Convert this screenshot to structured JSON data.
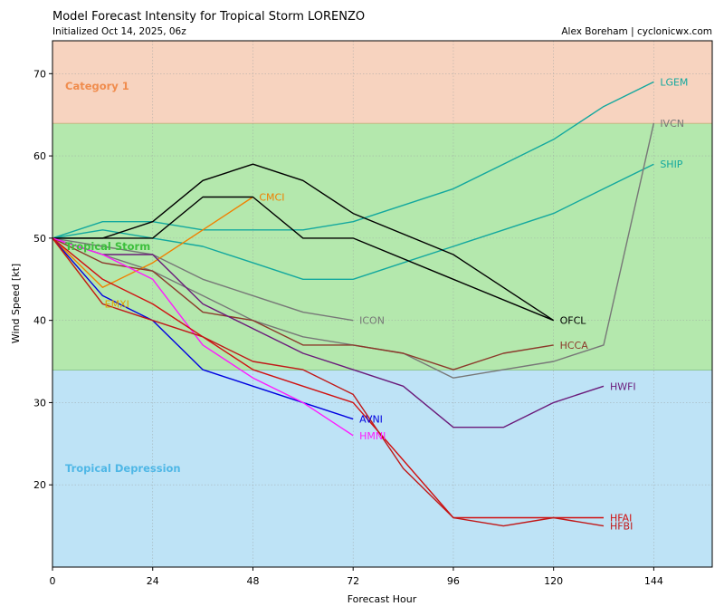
{
  "chart_data": {
    "type": "line",
    "title": "Model Forecast Intensity for Tropical Storm LORENZO",
    "subtitle": "Initialized Oct 14, 2025, 06z",
    "credit": "Alex Boreham | cyclonicwx.com",
    "xlabel": "Forecast Hour",
    "ylabel": "Wind Speed [kt]",
    "xlim": [
      0,
      158
    ],
    "ylim": [
      10,
      74
    ],
    "xticks": [
      0,
      24,
      48,
      72,
      96,
      120,
      144
    ],
    "yticks": [
      20,
      30,
      40,
      50,
      60,
      70
    ],
    "grid": true,
    "bands": [
      {
        "name": "Tropical Depression",
        "from": 10,
        "to": 34,
        "color": "#bee3f6",
        "border": "#7fbf7f",
        "label_color": "#4fb7e6",
        "label_y": 22
      },
      {
        "name": "Tropical Storm",
        "from": 34,
        "to": 64,
        "color": "#b4e8ad",
        "border": "#c9a46e",
        "label_color": "#3cbf3c",
        "label_y": 49
      },
      {
        "name": "Category 1",
        "from": 64,
        "to": 74,
        "color": "#f7d3bf",
        "border": null,
        "label_color": "#f08c4d",
        "label_y": 68.5
      }
    ],
    "series": [
      {
        "name": "LGEM",
        "color": "#13a89e",
        "x": [
          0,
          12,
          24,
          36,
          48,
          60,
          72,
          84,
          96,
          108,
          120,
          132,
          144
        ],
        "y": [
          50,
          52,
          52,
          51,
          51,
          51,
          52,
          54,
          56,
          59,
          62,
          66,
          69
        ]
      },
      {
        "name": "SHIP",
        "color": "#13a89e",
        "x": [
          0,
          12,
          24,
          36,
          48,
          60,
          72,
          84,
          96,
          108,
          120,
          132,
          144
        ],
        "y": [
          50,
          51,
          50,
          49,
          47,
          45,
          45,
          47,
          49,
          51,
          53,
          56,
          59
        ]
      },
      {
        "name": "IVCN",
        "color": "#777777",
        "x": [
          0,
          12,
          24,
          36,
          48,
          60,
          72,
          84,
          96,
          108,
          120,
          132,
          144
        ],
        "y": [
          50,
          48,
          46,
          43,
          40,
          38,
          37,
          36,
          33,
          34,
          35,
          37,
          64
        ]
      },
      {
        "name": "ICON",
        "color": "#777777",
        "x": [
          0,
          12,
          24,
          36,
          48,
          60,
          72
        ],
        "y": [
          50,
          49,
          48,
          45,
          43,
          41,
          40
        ]
      },
      {
        "name": "CMCI",
        "color": "#f08000",
        "x": [
          0,
          12,
          24,
          36,
          48
        ],
        "y": [
          50,
          44,
          47,
          51,
          55
        ]
      },
      {
        "name": "OFCL",
        "color": "#000000",
        "x": [
          0,
          12,
          24,
          36,
          48,
          60,
          72,
          96,
          120
        ],
        "y": [
          50,
          50,
          52,
          57,
          59,
          57,
          53,
          48,
          40
        ]
      },
      {
        "name": "OFCL-2",
        "color": "#000000",
        "x": [
          0,
          12,
          24,
          36,
          48,
          60,
          72,
          96,
          120
        ],
        "y": [
          50,
          50,
          50,
          55,
          55,
          50,
          50,
          45,
          40
        ]
      },
      {
        "name": "HCCA",
        "color": "#8b3a2b",
        "x": [
          0,
          12,
          24,
          36,
          48,
          60,
          72,
          84,
          96,
          108,
          120
        ],
        "y": [
          50,
          47,
          46,
          41,
          40,
          37,
          37,
          36,
          34,
          36,
          37
        ]
      },
      {
        "name": "HWFI",
        "color": "#6a1a7a",
        "x": [
          0,
          12,
          24,
          36,
          48,
          60,
          72,
          84,
          96,
          108,
          120,
          132
        ],
        "y": [
          50,
          48,
          48,
          42,
          39,
          36,
          34,
          32,
          27,
          27,
          30,
          32
        ]
      },
      {
        "name": "AVNI",
        "color": "#0000e0",
        "x": [
          0,
          12,
          24,
          36,
          48,
          60,
          72
        ],
        "y": [
          50,
          43,
          40,
          34,
          32,
          30,
          28
        ]
      },
      {
        "name": "HMNI",
        "color": "#ff1aff",
        "x": [
          0,
          12,
          24,
          36,
          48,
          60,
          72
        ],
        "y": [
          50,
          48,
          45,
          37,
          33,
          30,
          26
        ]
      },
      {
        "name": "EMXI",
        "color": "#e0a000",
        "x": [
          0,
          12
        ],
        "y": [
          50,
          42
        ]
      },
      {
        "name": "HFAI",
        "color": "#d01010",
        "x": [
          0,
          12,
          24,
          36,
          48,
          60,
          72,
          84,
          96,
          108,
          120,
          132
        ],
        "y": [
          50,
          45,
          42,
          38,
          34,
          32,
          30,
          23,
          16,
          16,
          16,
          16
        ]
      },
      {
        "name": "HFBI",
        "color": "#c01818",
        "x": [
          0,
          12,
          24,
          36,
          48,
          60,
          72,
          84,
          96,
          108,
          120,
          132
        ],
        "y": [
          50,
          42,
          40,
          38,
          35,
          34,
          31,
          22,
          16,
          15,
          16,
          15
        ]
      }
    ],
    "labels": [
      {
        "text": "LGEM",
        "color": "#13a89e",
        "x": 145.5,
        "y": 69
      },
      {
        "text": "IVCN",
        "color": "#777777",
        "x": 145.5,
        "y": 64
      },
      {
        "text": "SHIP",
        "color": "#13a89e",
        "x": 145.5,
        "y": 59
      },
      {
        "text": "CMCI",
        "color": "#f08000",
        "x": 49.5,
        "y": 55
      },
      {
        "text": "ICON",
        "color": "#777777",
        "x": 73.5,
        "y": 40
      },
      {
        "text": "OFCL",
        "color": "#000000",
        "x": 121.5,
        "y": 40
      },
      {
        "text": "HCCA",
        "color": "#8b3a2b",
        "x": 121.5,
        "y": 37
      },
      {
        "text": "HWFI",
        "color": "#6a1a7a",
        "x": 133.5,
        "y": 32
      },
      {
        "text": "AVNI",
        "color": "#0000e0",
        "x": 73.5,
        "y": 28
      },
      {
        "text": "HMNI",
        "color": "#ff1aff",
        "x": 73.5,
        "y": 26
      },
      {
        "text": "HFAI",
        "color": "#d01010",
        "x": 133.5,
        "y": 16
      },
      {
        "text": "HFBI",
        "color": "#c01818",
        "x": 133.5,
        "y": 15
      },
      {
        "text": "EMXI",
        "color": "#e0a000",
        "x": 12.5,
        "y": 42
      }
    ]
  }
}
